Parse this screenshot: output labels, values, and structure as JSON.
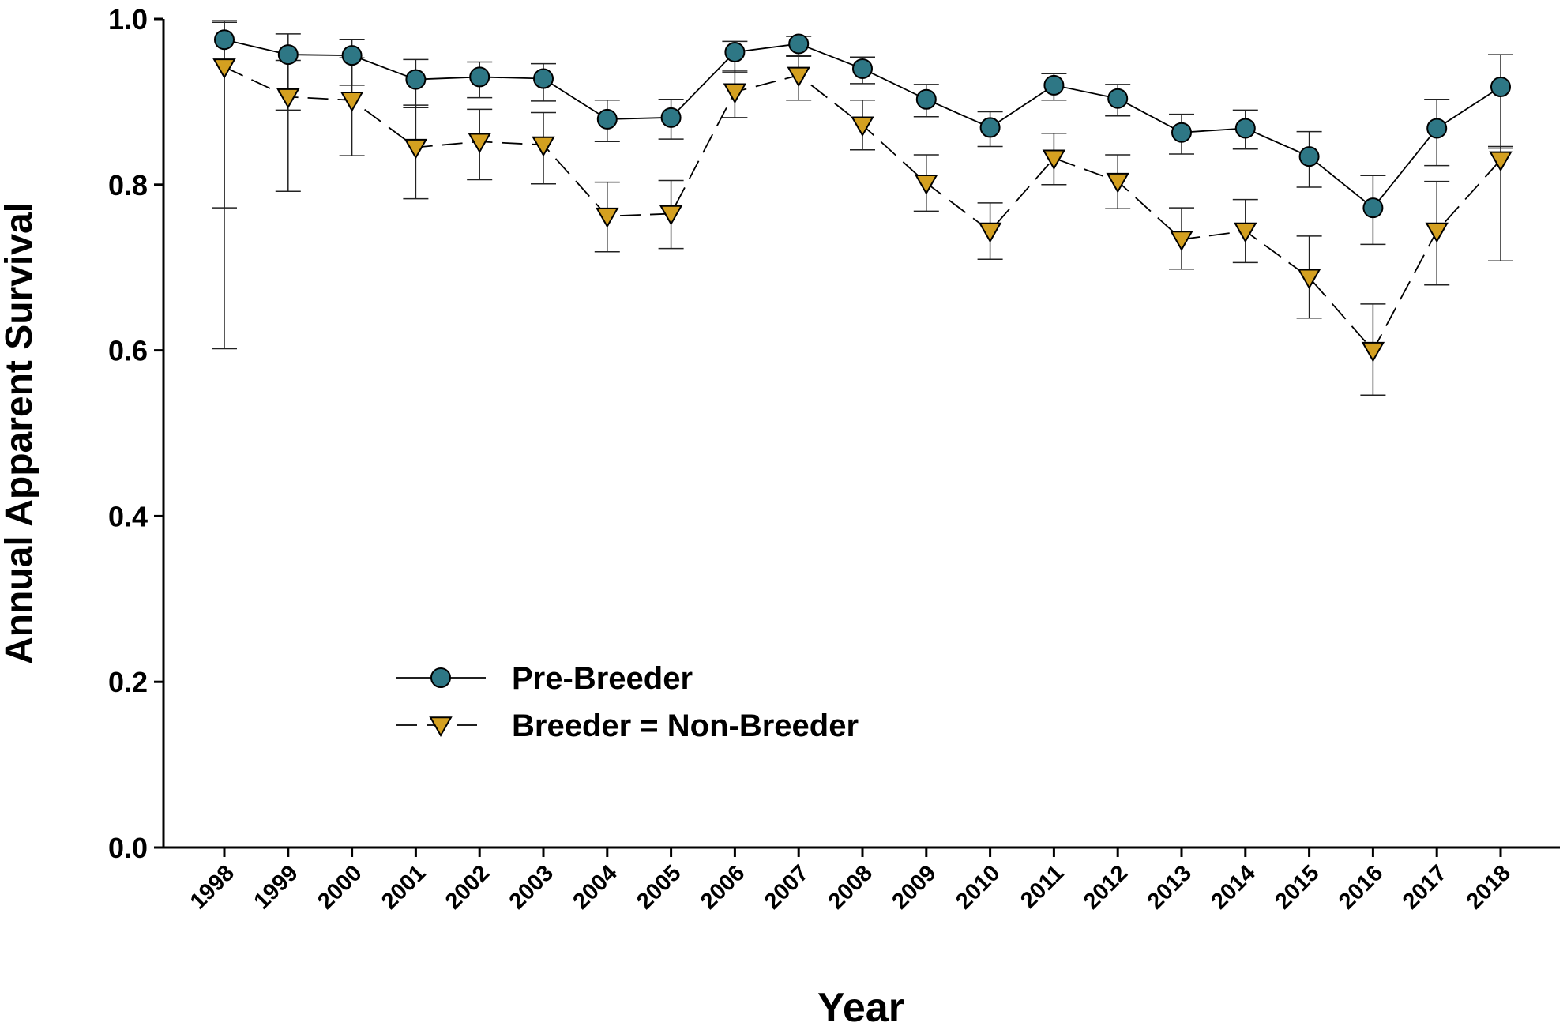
{
  "chart_data": {
    "type": "line",
    "xlabel": "Year",
    "ylabel": "Annual Apparent Survival",
    "ylim": [
      0.0,
      1.0
    ],
    "yticks": [
      "0.0",
      "0.2",
      "0.4",
      "0.6",
      "0.8",
      "1.0"
    ],
    "categories": [
      "1998",
      "1999",
      "2000",
      "2001",
      "2002",
      "2003",
      "2004",
      "2005",
      "2006",
      "2007",
      "2008",
      "2009",
      "2010",
      "2011",
      "2012",
      "2013",
      "2014",
      "2015",
      "2016",
      "2017",
      "2018"
    ],
    "grid": false,
    "legend_position": "lower-left",
    "series": [
      {
        "name": "Pre-Breeder",
        "marker": "circle",
        "line_style": "solid",
        "color": "#2E7785",
        "values": [
          0.975,
          0.957,
          0.956,
          0.927,
          0.93,
          0.928,
          0.879,
          0.881,
          0.96,
          0.97,
          0.94,
          0.903,
          0.869,
          0.92,
          0.904,
          0.863,
          0.868,
          0.834,
          0.772,
          0.868,
          0.918
        ],
        "upper": [
          0.998,
          0.982,
          0.975,
          0.951,
          0.948,
          0.946,
          0.902,
          0.903,
          0.973,
          0.979,
          0.954,
          0.921,
          0.888,
          0.934,
          0.921,
          0.885,
          0.89,
          0.864,
          0.811,
          0.903,
          0.957
        ],
        "lower": [
          0.772,
          0.89,
          0.92,
          0.893,
          0.905,
          0.901,
          0.852,
          0.855,
          0.936,
          0.956,
          0.922,
          0.882,
          0.846,
          0.902,
          0.883,
          0.837,
          0.843,
          0.797,
          0.728,
          0.823,
          0.844
        ]
      },
      {
        "name": "Breeder = Non-Breeder",
        "marker": "triangle-down",
        "line_style": "dashed",
        "color": "#D4A020",
        "values": [
          0.942,
          0.906,
          0.902,
          0.845,
          0.852,
          0.848,
          0.762,
          0.765,
          0.912,
          0.932,
          0.872,
          0.802,
          0.744,
          0.832,
          0.804,
          0.734,
          0.744,
          0.688,
          0.6,
          0.744,
          0.83
        ],
        "upper": [
          0.996,
          0.95,
          0.953,
          0.896,
          0.891,
          0.887,
          0.803,
          0.805,
          0.938,
          0.955,
          0.902,
          0.836,
          0.778,
          0.862,
          0.836,
          0.772,
          0.782,
          0.738,
          0.656,
          0.804,
          0.846
        ],
        "lower": [
          0.602,
          0.792,
          0.835,
          0.783,
          0.806,
          0.801,
          0.719,
          0.723,
          0.881,
          0.902,
          0.842,
          0.768,
          0.71,
          0.8,
          0.771,
          0.698,
          0.706,
          0.639,
          0.546,
          0.679,
          0.708
        ]
      }
    ]
  }
}
